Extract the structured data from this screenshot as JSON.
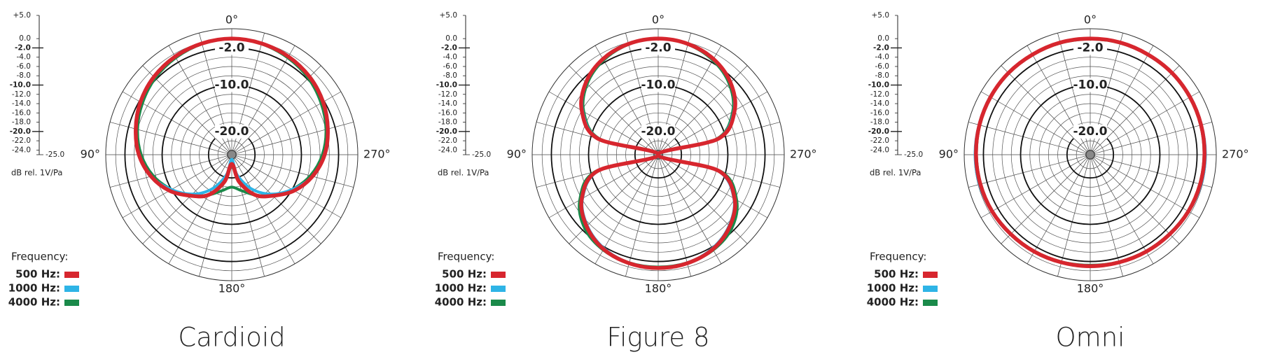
{
  "chart_data": [
    {
      "type": "polar",
      "title": "Cardioid",
      "unit_label": "dB rel. 1V/Pa",
      "legend_title": "Frequency:",
      "rlim": [
        -25,
        5
      ],
      "rticks": [
        {
          "value": 5,
          "label": "+5.0"
        },
        {
          "value": 0,
          "label": "0.0"
        },
        {
          "value": -2,
          "label": "-2.0"
        },
        {
          "value": -4,
          "label": "-4.0"
        },
        {
          "value": -6,
          "label": "-6.0"
        },
        {
          "value": -8,
          "label": "-8.0"
        },
        {
          "value": -10,
          "label": "-10.0"
        },
        {
          "value": -12,
          "label": "-12.0"
        },
        {
          "value": -14,
          "label": "-14.0"
        },
        {
          "value": -16,
          "label": "-16.0"
        },
        {
          "value": -18,
          "label": "-18.0"
        },
        {
          "value": -20,
          "label": "-20.0"
        },
        {
          "value": -22,
          "label": "-22.0"
        },
        {
          "value": -24,
          "label": "-24.0"
        },
        {
          "value": -25,
          "label": "-25.0"
        }
      ],
      "ring_labels": [
        {
          "value": -2,
          "label": "-2.0"
        },
        {
          "value": -10,
          "label": "-10.0"
        },
        {
          "value": -20,
          "label": "-20.0"
        }
      ],
      "angle_labels": [
        {
          "value": 0,
          "label": "0°"
        },
        {
          "value": 90,
          "label": "90°"
        },
        {
          "value": 180,
          "label": "180°"
        },
        {
          "value": 270,
          "label": "270°"
        }
      ],
      "theta": [
        0,
        15,
        30,
        45,
        60,
        75,
        90,
        105,
        120,
        135,
        150,
        165,
        180,
        195,
        210,
        225,
        240,
        255,
        270,
        285,
        300,
        315,
        330,
        345
      ],
      "series": [
        {
          "name": "500 Hz:",
          "color": "#d7262e",
          "values": [
            0,
            -0.2,
            -0.6,
            -1.3,
            -2.3,
            -3.6,
            -5,
            -7,
            -9.5,
            -12.5,
            -15,
            -19,
            -23,
            -19,
            -15,
            -12.5,
            -9.5,
            -7,
            -5,
            -3.6,
            -2.3,
            -1.3,
            -0.6,
            -0.2
          ]
        },
        {
          "name": "1000 Hz:",
          "color": "#2eb4e6",
          "values": [
            0,
            -0.2,
            -0.6,
            -1.2,
            -2.2,
            -3.5,
            -5,
            -7,
            -10,
            -13,
            -16.5,
            -20.5,
            -24,
            -20.5,
            -16.5,
            -13,
            -10,
            -7,
            -5,
            -3.5,
            -2.2,
            -1.2,
            -0.6,
            -0.2
          ]
        },
        {
          "name": "4000 Hz:",
          "color": "#1a8a4a",
          "values": [
            0,
            -0.3,
            -0.9,
            -1.7,
            -2.8,
            -4,
            -5.5,
            -7.5,
            -10,
            -12.5,
            -15,
            -17,
            -18,
            -17,
            -15,
            -12.5,
            -10,
            -7.5,
            -5.5,
            -4,
            -2.8,
            -1.7,
            -0.9,
            -0.3
          ]
        }
      ]
    },
    {
      "type": "polar",
      "title": "Figure 8",
      "unit_label": "dB rel. 1V/Pa",
      "legend_title": "Frequency:",
      "rlim": [
        -25,
        5
      ],
      "rticks": [
        {
          "value": 5,
          "label": "+5.0"
        },
        {
          "value": 0,
          "label": "0.0"
        },
        {
          "value": -2,
          "label": "-2.0"
        },
        {
          "value": -4,
          "label": "-4.0"
        },
        {
          "value": -6,
          "label": "-6.0"
        },
        {
          "value": -8,
          "label": "-8.0"
        },
        {
          "value": -10,
          "label": "-10.0"
        },
        {
          "value": -12,
          "label": "-12.0"
        },
        {
          "value": -14,
          "label": "-14.0"
        },
        {
          "value": -16,
          "label": "-16.0"
        },
        {
          "value": -18,
          "label": "-18.0"
        },
        {
          "value": -20,
          "label": "-20.0"
        },
        {
          "value": -22,
          "label": "-22.0"
        },
        {
          "value": -24,
          "label": "-24.0"
        },
        {
          "value": -25,
          "label": "-25.0"
        }
      ],
      "ring_labels": [
        {
          "value": -2,
          "label": "-2.0"
        },
        {
          "value": -10,
          "label": "-10.0"
        },
        {
          "value": -20,
          "label": "-20.0"
        }
      ],
      "angle_labels": [
        {
          "value": 0,
          "label": "0°"
        },
        {
          "value": 90,
          "label": "90°"
        },
        {
          "value": 180,
          "label": "180°"
        },
        {
          "value": 270,
          "label": "270°"
        }
      ],
      "theta": [
        0,
        15,
        30,
        45,
        60,
        75,
        90,
        105,
        120,
        135,
        150,
        165,
        180,
        195,
        210,
        225,
        240,
        255,
        270,
        285,
        300,
        315,
        330,
        345
      ],
      "series": [
        {
          "name": "500 Hz:",
          "color": "#d7262e",
          "values": [
            0,
            -0.3,
            -1.2,
            -3,
            -6,
            -11.5,
            -25,
            -11.5,
            -6,
            -3.2,
            -1.5,
            -0.8,
            -0.6,
            -0.8,
            -1.5,
            -3.2,
            -6,
            -11.5,
            -25,
            -11.5,
            -6,
            -3,
            -1.2,
            -0.3
          ]
        },
        {
          "name": "1000 Hz:",
          "color": "#2eb4e6",
          "values": [
            0,
            -0.3,
            -1.3,
            -3.1,
            -6.2,
            -11.8,
            -25,
            -11.8,
            -6.2,
            -3.4,
            -1.7,
            -0.9,
            -0.7,
            -0.9,
            -1.7,
            -3.4,
            -6.2,
            -11.8,
            -25,
            -11.8,
            -6.2,
            -3.1,
            -1.3,
            -0.3
          ]
        },
        {
          "name": "4000 Hz:",
          "color": "#1a8a4a",
          "values": [
            0,
            -0.4,
            -1.5,
            -3.4,
            -6.5,
            -12,
            -25,
            -11,
            -5.5,
            -2.6,
            -1.3,
            -0.9,
            -0.8,
            -0.9,
            -1.3,
            -2.6,
            -5.5,
            -11,
            -25,
            -12,
            -6.5,
            -3.4,
            -1.5,
            -0.4
          ]
        }
      ]
    },
    {
      "type": "polar",
      "title": "Omni",
      "unit_label": "dB rel. 1V/Pa",
      "legend_title": "Frequency:",
      "rlim": [
        -25,
        5
      ],
      "rticks": [
        {
          "value": 5,
          "label": "+5.0"
        },
        {
          "value": 0,
          "label": "0.0"
        },
        {
          "value": -2,
          "label": "-2.0"
        },
        {
          "value": -4,
          "label": "-4.0"
        },
        {
          "value": -6,
          "label": "-6.0"
        },
        {
          "value": -8,
          "label": "-8.0"
        },
        {
          "value": -10,
          "label": "-10.0"
        },
        {
          "value": -12,
          "label": "-12.0"
        },
        {
          "value": -14,
          "label": "-14.0"
        },
        {
          "value": -16,
          "label": "-16.0"
        },
        {
          "value": -18,
          "label": "-18.0"
        },
        {
          "value": -20,
          "label": "-20.0"
        },
        {
          "value": -22,
          "label": "-22.0"
        },
        {
          "value": -24,
          "label": "-24.0"
        },
        {
          "value": -25,
          "label": "-25.0"
        }
      ],
      "ring_labels": [
        {
          "value": -2,
          "label": "-2.0"
        },
        {
          "value": -10,
          "label": "-10.0"
        },
        {
          "value": -20,
          "label": "-20.0"
        }
      ],
      "angle_labels": [
        {
          "value": 0,
          "label": "0°"
        },
        {
          "value": 90,
          "label": "90°"
        },
        {
          "value": 180,
          "label": "180°"
        },
        {
          "value": 270,
          "label": "270°"
        }
      ],
      "theta": [
        0,
        15,
        30,
        45,
        60,
        75,
        90,
        105,
        120,
        135,
        150,
        165,
        180,
        195,
        210,
        225,
        240,
        255,
        270,
        285,
        300,
        315,
        330,
        345
      ],
      "series": [
        {
          "name": "500 Hz:",
          "color": "#d7262e",
          "values": [
            0,
            0,
            -0.1,
            -0.1,
            -0.2,
            -0.3,
            -0.4,
            -0.5,
            -0.6,
            -0.8,
            -0.9,
            -1,
            -1,
            -1,
            -0.9,
            -0.8,
            -0.6,
            -0.5,
            -0.4,
            -0.3,
            -0.2,
            -0.1,
            -0.1,
            0
          ]
        },
        {
          "name": "1000 Hz:",
          "color": "#2eb4e6",
          "values": [
            0,
            0,
            -0.1,
            -0.1,
            -0.1,
            -0.2,
            -0.2,
            -0.3,
            -0.5,
            -0.7,
            -0.9,
            -1,
            -1.1,
            -1,
            -0.9,
            -0.7,
            -0.5,
            -0.3,
            -0.2,
            -0.2,
            -0.1,
            -0.1,
            -0.1,
            0
          ]
        },
        {
          "name": "4000 Hz:",
          "color": "#1a8a4a",
          "values": [
            -0.1,
            -0.1,
            -0.2,
            -0.2,
            -0.3,
            -0.4,
            -0.5,
            -0.6,
            -0.7,
            -0.9,
            -1,
            -1.1,
            -1.2,
            -1.1,
            -1,
            -0.9,
            -0.7,
            -0.6,
            -0.5,
            -0.4,
            -0.3,
            -0.2,
            -0.2,
            -0.1
          ]
        }
      ]
    }
  ]
}
